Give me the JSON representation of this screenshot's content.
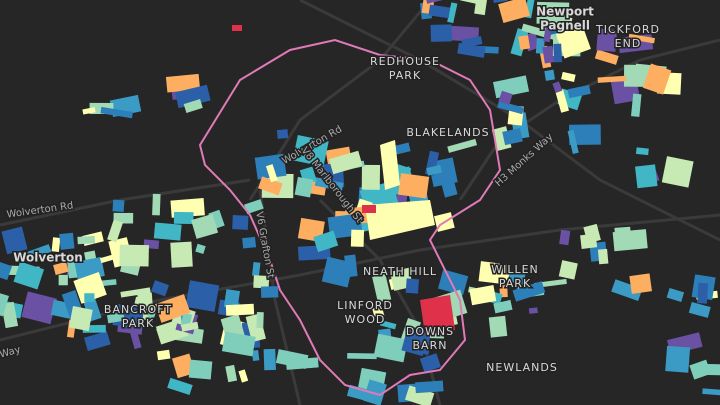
{
  "map": {
    "places": [
      {
        "lines": [
          "Newport",
          "Pagnell"
        ]
      },
      {
        "lines": [
          "TICKFORD",
          "END"
        ]
      },
      {
        "lines": [
          "REDHOUSE",
          "PARK"
        ]
      },
      {
        "lines": [
          "BLAKELANDS"
        ]
      },
      {
        "lines": [
          "Wolverton"
        ]
      },
      {
        "lines": [
          "BANCROFT",
          "PARK"
        ]
      },
      {
        "lines": [
          "NEATH HILL"
        ]
      },
      {
        "lines": [
          "LINFORD",
          "WOOD"
        ]
      },
      {
        "lines": [
          "DOWNS",
          "BARN"
        ]
      },
      {
        "lines": [
          "WILLEN",
          "PARK"
        ]
      },
      {
        "lines": [
          "NEWLANDS"
        ]
      }
    ],
    "roads": [
      "Wolverton Rd",
      "V8 Marlborough St",
      "H3 Monks Way",
      "Wolverton Rd",
      "V6 Grafton St",
      "Way"
    ]
  }
}
